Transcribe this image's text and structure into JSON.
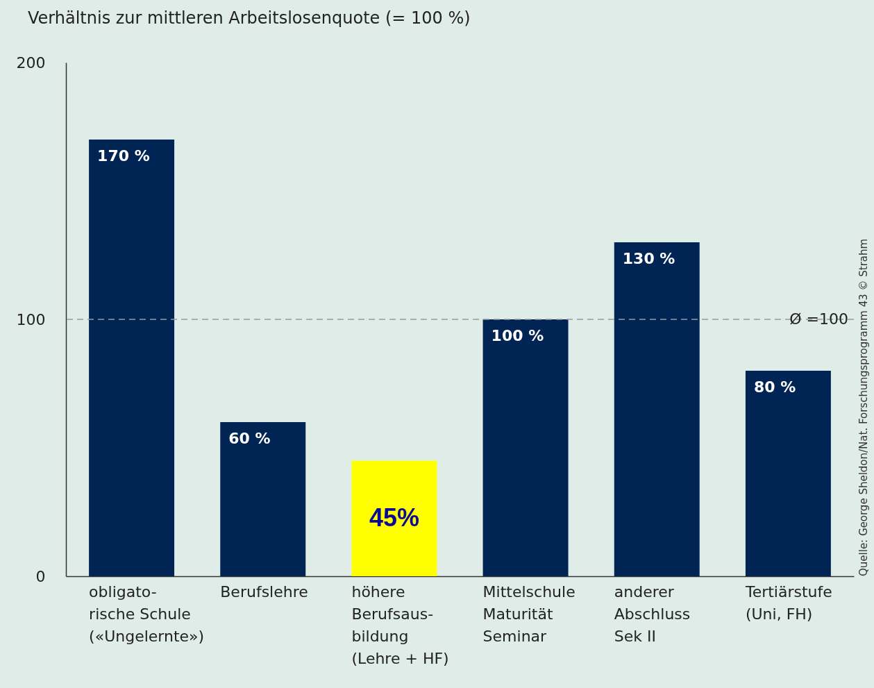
{
  "chart_data": {
    "type": "bar",
    "title": "Verhältnis zur mittleren Arbeitslosenquote (= 100 %)",
    "categories": [
      "obligato-\nrische Schule\n(«Ungelernte»)",
      "Berufslehre",
      "höhere\nBerufsaus-\nbildung\n(Lehre + HF)",
      "Mittelschule\nMaturität\nSeminar",
      "anderer\nAbschluss\nSek II",
      "Tertiärstufe\n(Uni, FH)"
    ],
    "values": [
      170,
      60,
      45,
      100,
      130,
      80
    ],
    "colors": [
      "#002554",
      "#002554",
      "#ffff00",
      "#002554",
      "#002554",
      "#002554"
    ],
    "value_labels": [
      "170 %",
      "60 %",
      "45%",
      "100 %",
      "130 %",
      "80 %"
    ],
    "ylim": [
      0,
      200
    ],
    "yticks": [
      0,
      100,
      200
    ],
    "ref_lines": [
      {
        "axis": "y",
        "value": 100,
        "label": "Ø =100",
        "color": "#999999",
        "line_style": "dashed"
      }
    ],
    "annotations": [
      "Quelle: George Sheldon/Nat. Forschungsprogramm 43 © Strahm"
    ]
  }
}
